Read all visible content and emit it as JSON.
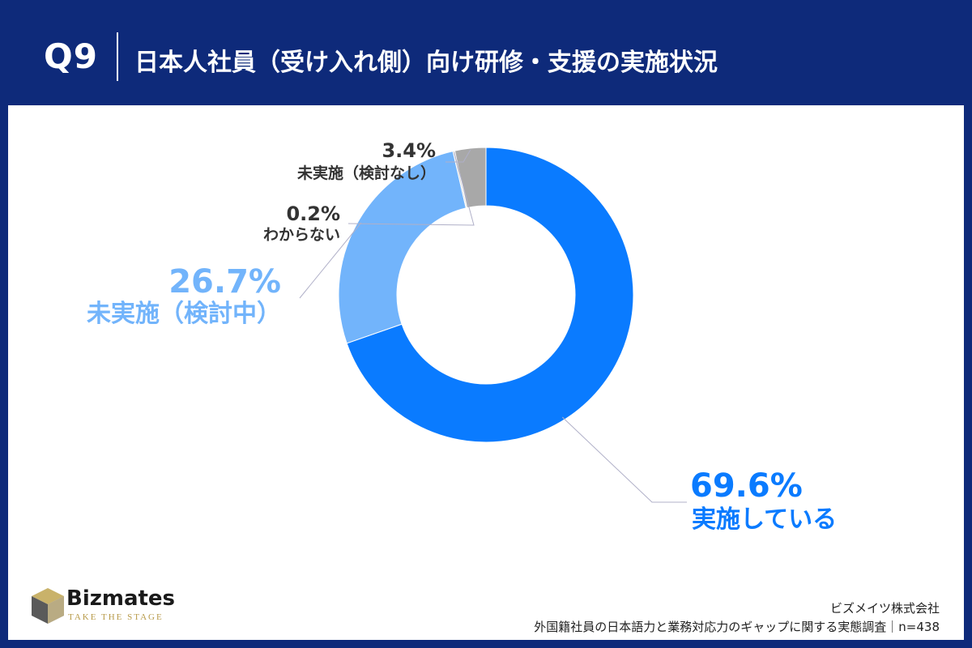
{
  "header": {
    "question_number": "Q9",
    "title": "日本人社員（受け入れ側）向け研修・支援の実施状況"
  },
  "chart_data": {
    "type": "pie",
    "donut": true,
    "start_angle_deg": 0,
    "direction": "clockwise",
    "slices": [
      {
        "label": "実施している",
        "value": 69.6,
        "display": "69.6%",
        "color": "#0a7bff"
      },
      {
        "label": "未実施（検討中）",
        "value": 26.7,
        "display": "26.7%",
        "color": "#72b4fb"
      },
      {
        "label": "わからない",
        "value": 0.2,
        "display": "0.2%",
        "color": "#cfcfcf"
      },
      {
        "label": "未実施（検討なし）",
        "value": 3.4,
        "display": "3.4%",
        "color": "#a8a8a8"
      }
    ]
  },
  "footer": {
    "logo_name": "Bizmates",
    "logo_tagline": "TAKE THE STAGE",
    "company": "ビズメイツ株式会社",
    "survey": "外国籍社員の日本語力と業務対応力のギャップに関する実態調査｜n=438"
  },
  "colors": {
    "header_bg": "#0e2a7a",
    "leader_line": "#b0b0c8"
  }
}
